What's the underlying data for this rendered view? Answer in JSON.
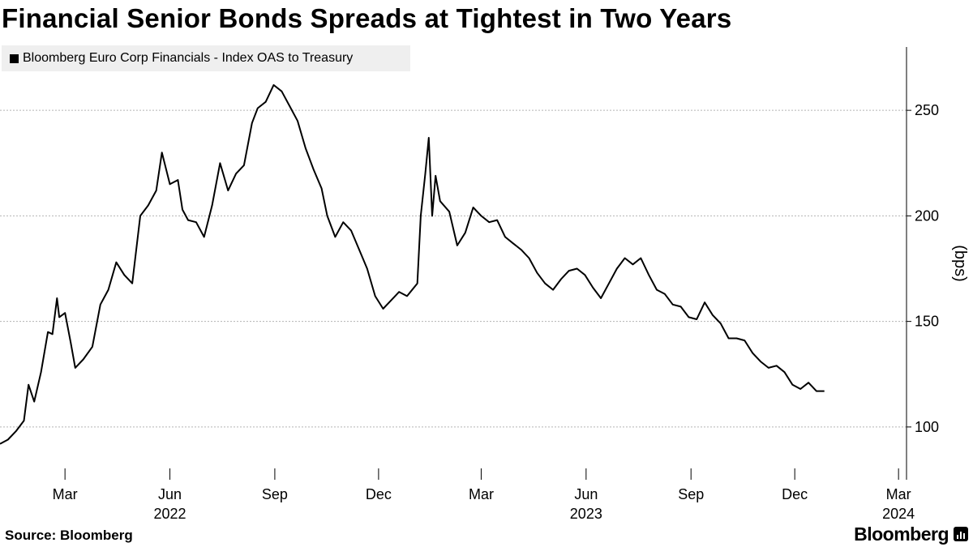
{
  "title": "Financial Senior Bonds Spreads at Tightest in Two Years",
  "source": "Source: Bloomberg",
  "brand": "Bloomberg",
  "brand_icon": "bloomberg-chart-icon",
  "colors": {
    "line": "#000000",
    "grid": "#b3b3b3",
    "legend_bg": "#efefef"
  },
  "chart_data": {
    "type": "line",
    "title": "Financial Senior Bonds Spreads at Tightest in Two Years",
    "ylabel": "(bps)",
    "xlabel": "",
    "ylim": [
      75,
      280
    ],
    "xlim": [
      "2022-01-03",
      "2024-03-08"
    ],
    "y_axis_position": "right",
    "grid": "horizontal dotted",
    "legend_position": "top-left",
    "y_ticks": [
      100,
      150,
      200,
      250
    ],
    "x_ticks": [
      {
        "date": "2022-03-01",
        "label": "Mar",
        "year": ""
      },
      {
        "date": "2022-06-01",
        "label": "Jun",
        "year": "2022"
      },
      {
        "date": "2022-09-01",
        "label": "Sep",
        "year": ""
      },
      {
        "date": "2022-12-01",
        "label": "Dec",
        "year": ""
      },
      {
        "date": "2023-03-01",
        "label": "Mar",
        "year": ""
      },
      {
        "date": "2023-06-01",
        "label": "Jun",
        "year": "2023"
      },
      {
        "date": "2023-09-01",
        "label": "Sep",
        "year": ""
      },
      {
        "date": "2023-12-01",
        "label": "Dec",
        "year": ""
      },
      {
        "date": "2024-03-01",
        "label": "Mar",
        "year": "2024"
      }
    ],
    "series": [
      {
        "name": "Bloomberg Euro Corp Financials - Index OAS to Treasury",
        "points": [
          [
            "2022-01-03",
            92
          ],
          [
            "2022-01-10",
            94
          ],
          [
            "2022-01-17",
            98
          ],
          [
            "2022-01-24",
            103
          ],
          [
            "2022-01-28",
            120
          ],
          [
            "2022-02-02",
            112
          ],
          [
            "2022-02-08",
            126
          ],
          [
            "2022-02-14",
            145
          ],
          [
            "2022-02-18",
            144
          ],
          [
            "2022-02-22",
            161
          ],
          [
            "2022-02-24",
            152
          ],
          [
            "2022-03-01",
            154
          ],
          [
            "2022-03-06",
            140
          ],
          [
            "2022-03-10",
            128
          ],
          [
            "2022-03-17",
            132
          ],
          [
            "2022-03-25",
            138
          ],
          [
            "2022-04-01",
            158
          ],
          [
            "2022-04-08",
            165
          ],
          [
            "2022-04-15",
            178
          ],
          [
            "2022-04-22",
            172
          ],
          [
            "2022-04-29",
            168
          ],
          [
            "2022-05-06",
            200
          ],
          [
            "2022-05-13",
            205
          ],
          [
            "2022-05-20",
            212
          ],
          [
            "2022-05-25",
            230
          ],
          [
            "2022-06-01",
            215
          ],
          [
            "2022-06-08",
            217
          ],
          [
            "2022-06-12",
            203
          ],
          [
            "2022-06-17",
            198
          ],
          [
            "2022-06-24",
            197
          ],
          [
            "2022-07-01",
            190
          ],
          [
            "2022-07-08",
            205
          ],
          [
            "2022-07-15",
            225
          ],
          [
            "2022-07-22",
            212
          ],
          [
            "2022-07-29",
            220
          ],
          [
            "2022-08-05",
            224
          ],
          [
            "2022-08-12",
            244
          ],
          [
            "2022-08-17",
            251
          ],
          [
            "2022-08-24",
            254
          ],
          [
            "2022-08-31",
            262
          ],
          [
            "2022-09-07",
            259
          ],
          [
            "2022-09-14",
            252
          ],
          [
            "2022-09-21",
            245
          ],
          [
            "2022-09-28",
            232
          ],
          [
            "2022-10-05",
            222
          ],
          [
            "2022-10-12",
            213
          ],
          [
            "2022-10-17",
            200
          ],
          [
            "2022-10-24",
            190
          ],
          [
            "2022-10-31",
            197
          ],
          [
            "2022-11-07",
            193
          ],
          [
            "2022-11-14",
            184
          ],
          [
            "2022-11-21",
            175
          ],
          [
            "2022-11-28",
            162
          ],
          [
            "2022-12-05",
            156
          ],
          [
            "2022-12-12",
            160
          ],
          [
            "2022-12-19",
            164
          ],
          [
            "2022-12-26",
            162
          ],
          [
            "2023-01-04",
            168
          ],
          [
            "2023-01-07",
            200
          ],
          [
            "2023-01-11",
            220
          ],
          [
            "2023-01-14",
            237
          ],
          [
            "2023-01-17",
            200
          ],
          [
            "2023-01-20",
            219
          ],
          [
            "2023-01-24",
            207
          ],
          [
            "2023-02-01",
            202
          ],
          [
            "2023-02-08",
            186
          ],
          [
            "2023-02-15",
            192
          ],
          [
            "2023-02-22",
            204
          ],
          [
            "2023-03-01",
            200
          ],
          [
            "2023-03-08",
            197
          ],
          [
            "2023-03-15",
            198
          ],
          [
            "2023-03-22",
            190
          ],
          [
            "2023-03-29",
            187
          ],
          [
            "2023-04-05",
            184
          ],
          [
            "2023-04-12",
            180
          ],
          [
            "2023-04-19",
            173
          ],
          [
            "2023-04-26",
            168
          ],
          [
            "2023-05-03",
            165
          ],
          [
            "2023-05-10",
            170
          ],
          [
            "2023-05-17",
            174
          ],
          [
            "2023-05-24",
            175
          ],
          [
            "2023-05-31",
            172
          ],
          [
            "2023-06-07",
            166
          ],
          [
            "2023-06-14",
            161
          ],
          [
            "2023-06-21",
            168
          ],
          [
            "2023-06-28",
            175
          ],
          [
            "2023-07-05",
            180
          ],
          [
            "2023-07-12",
            177
          ],
          [
            "2023-07-19",
            180
          ],
          [
            "2023-07-26",
            172
          ],
          [
            "2023-08-02",
            165
          ],
          [
            "2023-08-09",
            163
          ],
          [
            "2023-08-16",
            158
          ],
          [
            "2023-08-23",
            157
          ],
          [
            "2023-08-30",
            152
          ],
          [
            "2023-09-06",
            151
          ],
          [
            "2023-09-13",
            159
          ],
          [
            "2023-09-20",
            153
          ],
          [
            "2023-09-27",
            149
          ],
          [
            "2023-10-04",
            142
          ],
          [
            "2023-10-11",
            142
          ],
          [
            "2023-10-18",
            141
          ],
          [
            "2023-10-25",
            135
          ],
          [
            "2023-11-01",
            131
          ],
          [
            "2023-11-08",
            128
          ],
          [
            "2023-11-15",
            129
          ],
          [
            "2023-11-22",
            126
          ],
          [
            "2023-11-29",
            120
          ],
          [
            "2023-12-06",
            118
          ],
          [
            "2023-12-13",
            121
          ],
          [
            "2023-12-20",
            117
          ],
          [
            "2023-12-27",
            117
          ]
        ]
      }
    ]
  }
}
